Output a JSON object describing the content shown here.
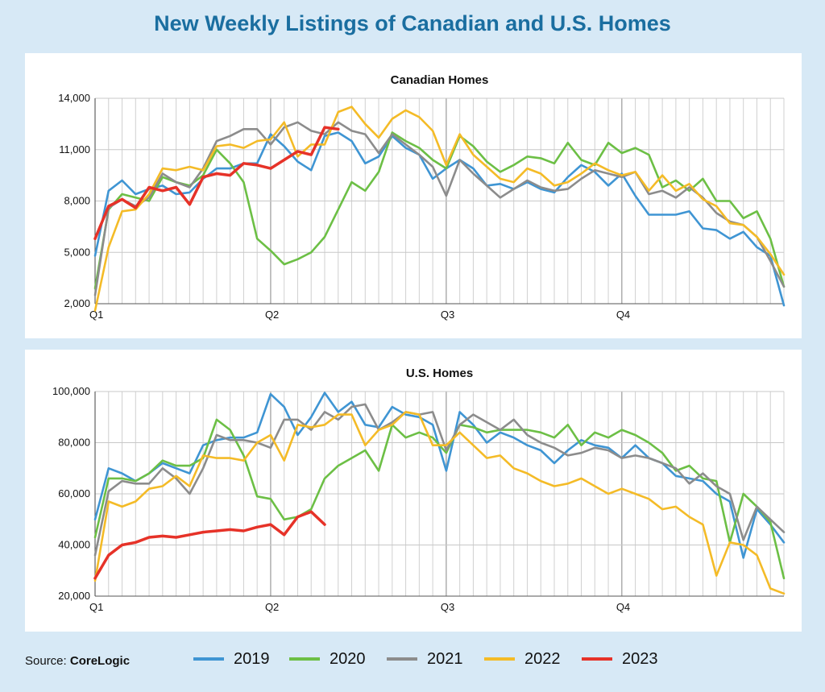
{
  "title": "New Weekly Listings of Canadian and U.S. Homes",
  "source": {
    "prefix": "Source: ",
    "name": "CoreLogic"
  },
  "series_styles": [
    {
      "name": "2019",
      "color": "#3f95d3"
    },
    {
      "name": "2020",
      "color": "#6cbf45"
    },
    {
      "name": "2021",
      "color": "#8c8c8c"
    },
    {
      "name": "2022",
      "color": "#f4bb27"
    },
    {
      "name": "2023",
      "color": "#e63228"
    }
  ],
  "chart_data": [
    {
      "type": "line",
      "title": "Canadian Homes",
      "x_tick_labels": [
        "Q1",
        "Q2",
        "Q3",
        "Q4"
      ],
      "y_tick_labels": [
        "2,000",
        "5,000",
        "8,000",
        "11,000",
        "14,000"
      ],
      "ylim": [
        2000,
        14000
      ],
      "grid": true,
      "legend": "bottom",
      "weeks": 52,
      "series": [
        {
          "name": "2019",
          "values": [
            4800,
            8600,
            9200,
            8400,
            8700,
            8900,
            8400,
            8500,
            9300,
            9900,
            9900,
            10200,
            10200,
            11900,
            11200,
            10300,
            9800,
            11800,
            12000,
            11500,
            10200,
            10600,
            11800,
            11100,
            10700,
            9300,
            9900,
            10400,
            9900,
            8900,
            9000,
            8700,
            9100,
            8700,
            8500,
            9400,
            10100,
            9700,
            8900,
            9600,
            8300,
            7200,
            7200,
            7200,
            7400,
            6400,
            6300,
            5800,
            6200,
            5300,
            4800,
            1900
          ]
        },
        {
          "name": "2020",
          "values": [
            2900,
            7500,
            8400,
            8200,
            8000,
            9400,
            9100,
            8900,
            9500,
            11000,
            10200,
            9100,
            5800,
            5100,
            4300,
            4600,
            5000,
            5900,
            7500,
            9100,
            8600,
            9700,
            12000,
            11500,
            11100,
            10400,
            9900,
            11800,
            11200,
            10300,
            9700,
            10100,
            10600,
            10500,
            10200,
            11400,
            10400,
            10100,
            11400,
            10800,
            11100,
            10700,
            8800,
            9200,
            8600,
            9300,
            8000,
            8000,
            7000,
            7400,
            5800,
            3000
          ]
        },
        {
          "name": "2021",
          "values": [
            2500,
            7600,
            8100,
            7700,
            8200,
            9600,
            9100,
            8800,
            9900,
            11500,
            11800,
            12200,
            12200,
            11300,
            12300,
            12600,
            12100,
            11900,
            12600,
            12100,
            11900,
            10800,
            11900,
            11300,
            10700,
            10000,
            8300,
            10400,
            9600,
            8900,
            8200,
            8700,
            9200,
            8800,
            8600,
            8700,
            9300,
            9800,
            9600,
            9400,
            9700,
            8400,
            8600,
            8200,
            8800,
            8200,
            7300,
            6800,
            6600,
            5900,
            4500,
            3000
          ]
        },
        {
          "name": "2022",
          "values": [
            1600,
            5300,
            7400,
            7500,
            8400,
            9900,
            9800,
            10000,
            9800,
            11200,
            11300,
            11100,
            11500,
            11600,
            12600,
            10600,
            11300,
            11300,
            13200,
            13500,
            12500,
            11700,
            12800,
            13300,
            12900,
            12100,
            10100,
            11900,
            10700,
            10000,
            9300,
            9100,
            9900,
            9600,
            8900,
            9100,
            9600,
            10200,
            9800,
            9500,
            9700,
            8600,
            9500,
            8600,
            9000,
            8100,
            7700,
            6700,
            6600,
            5900,
            4900,
            3700
          ]
        },
        {
          "name": "2023",
          "values": [
            5800,
            7700,
            8100,
            7600,
            8800,
            8600,
            8800,
            7800,
            9400,
            9600,
            9500,
            10200,
            10100,
            9900,
            10400,
            10900,
            10700,
            12300,
            12200
          ]
        }
      ]
    },
    {
      "type": "line",
      "title": "U.S. Homes",
      "x_tick_labels": [
        "Q1",
        "Q2",
        "Q3",
        "Q4"
      ],
      "y_tick_labels": [
        "20,000",
        "40,000",
        "60,000",
        "80,000",
        "100,000"
      ],
      "ylim": [
        20000,
        100000
      ],
      "grid": true,
      "legend": "bottom",
      "weeks": 52,
      "series": [
        {
          "name": "2019",
          "values": [
            50000,
            70000,
            68000,
            65000,
            68000,
            72000,
            70000,
            68000,
            79000,
            81000,
            82000,
            82000,
            84000,
            99000,
            94000,
            83000,
            90000,
            99500,
            92000,
            96000,
            87000,
            86000,
            94000,
            91000,
            90000,
            87000,
            69000,
            92000,
            87000,
            80000,
            84000,
            82000,
            79000,
            77000,
            72000,
            77000,
            81000,
            79000,
            78000,
            74000,
            79000,
            74000,
            72000,
            67000,
            66000,
            65000,
            60000,
            57000,
            35000,
            54000,
            48000,
            41000
          ]
        },
        {
          "name": "2020",
          "values": [
            43000,
            66000,
            66000,
            65000,
            68000,
            73000,
            71000,
            71000,
            74000,
            89000,
            85000,
            75000,
            59000,
            58000,
            50000,
            51000,
            54000,
            66000,
            71000,
            74000,
            77000,
            69000,
            87000,
            82000,
            84000,
            82000,
            76000,
            87000,
            86000,
            84000,
            85000,
            85000,
            85000,
            84000,
            82000,
            87000,
            79000,
            84000,
            82000,
            85000,
            83000,
            80000,
            76000,
            69000,
            71000,
            66000,
            65000,
            41000,
            60000,
            55000,
            49000,
            27000
          ]
        },
        {
          "name": "2021",
          "values": [
            36000,
            61000,
            65000,
            64000,
            64000,
            70000,
            66000,
            60000,
            70000,
            83000,
            81000,
            81000,
            80000,
            78000,
            89000,
            89000,
            85000,
            92000,
            89000,
            94000,
            95000,
            85000,
            88000,
            92000,
            91000,
            92000,
            77000,
            87000,
            91000,
            88000,
            85000,
            89000,
            83000,
            80000,
            78000,
            75000,
            76000,
            78000,
            77000,
            74000,
            75000,
            74000,
            72000,
            70000,
            64000,
            68000,
            63000,
            60000,
            42000,
            55000,
            50000,
            45000
          ]
        },
        {
          "name": "2022",
          "values": [
            26000,
            57000,
            55000,
            57000,
            62000,
            63000,
            67000,
            63000,
            75000,
            74000,
            74000,
            73000,
            80000,
            83000,
            73000,
            87000,
            86000,
            87000,
            91000,
            91000,
            79000,
            85000,
            87000,
            92000,
            91000,
            79000,
            79000,
            84000,
            79000,
            74000,
            75000,
            70000,
            68000,
            65000,
            63000,
            64000,
            66000,
            63000,
            60000,
            62000,
            60000,
            58000,
            54000,
            55000,
            51000,
            48000,
            28000,
            41000,
            40000,
            36000,
            23000,
            21000
          ]
        },
        {
          "name": "2023",
          "values": [
            27000,
            36000,
            40000,
            41000,
            43000,
            43500,
            43000,
            44000,
            45000,
            45500,
            46000,
            45500,
            47000,
            48000,
            44000,
            51000,
            53000,
            48000
          ]
        }
      ]
    }
  ]
}
